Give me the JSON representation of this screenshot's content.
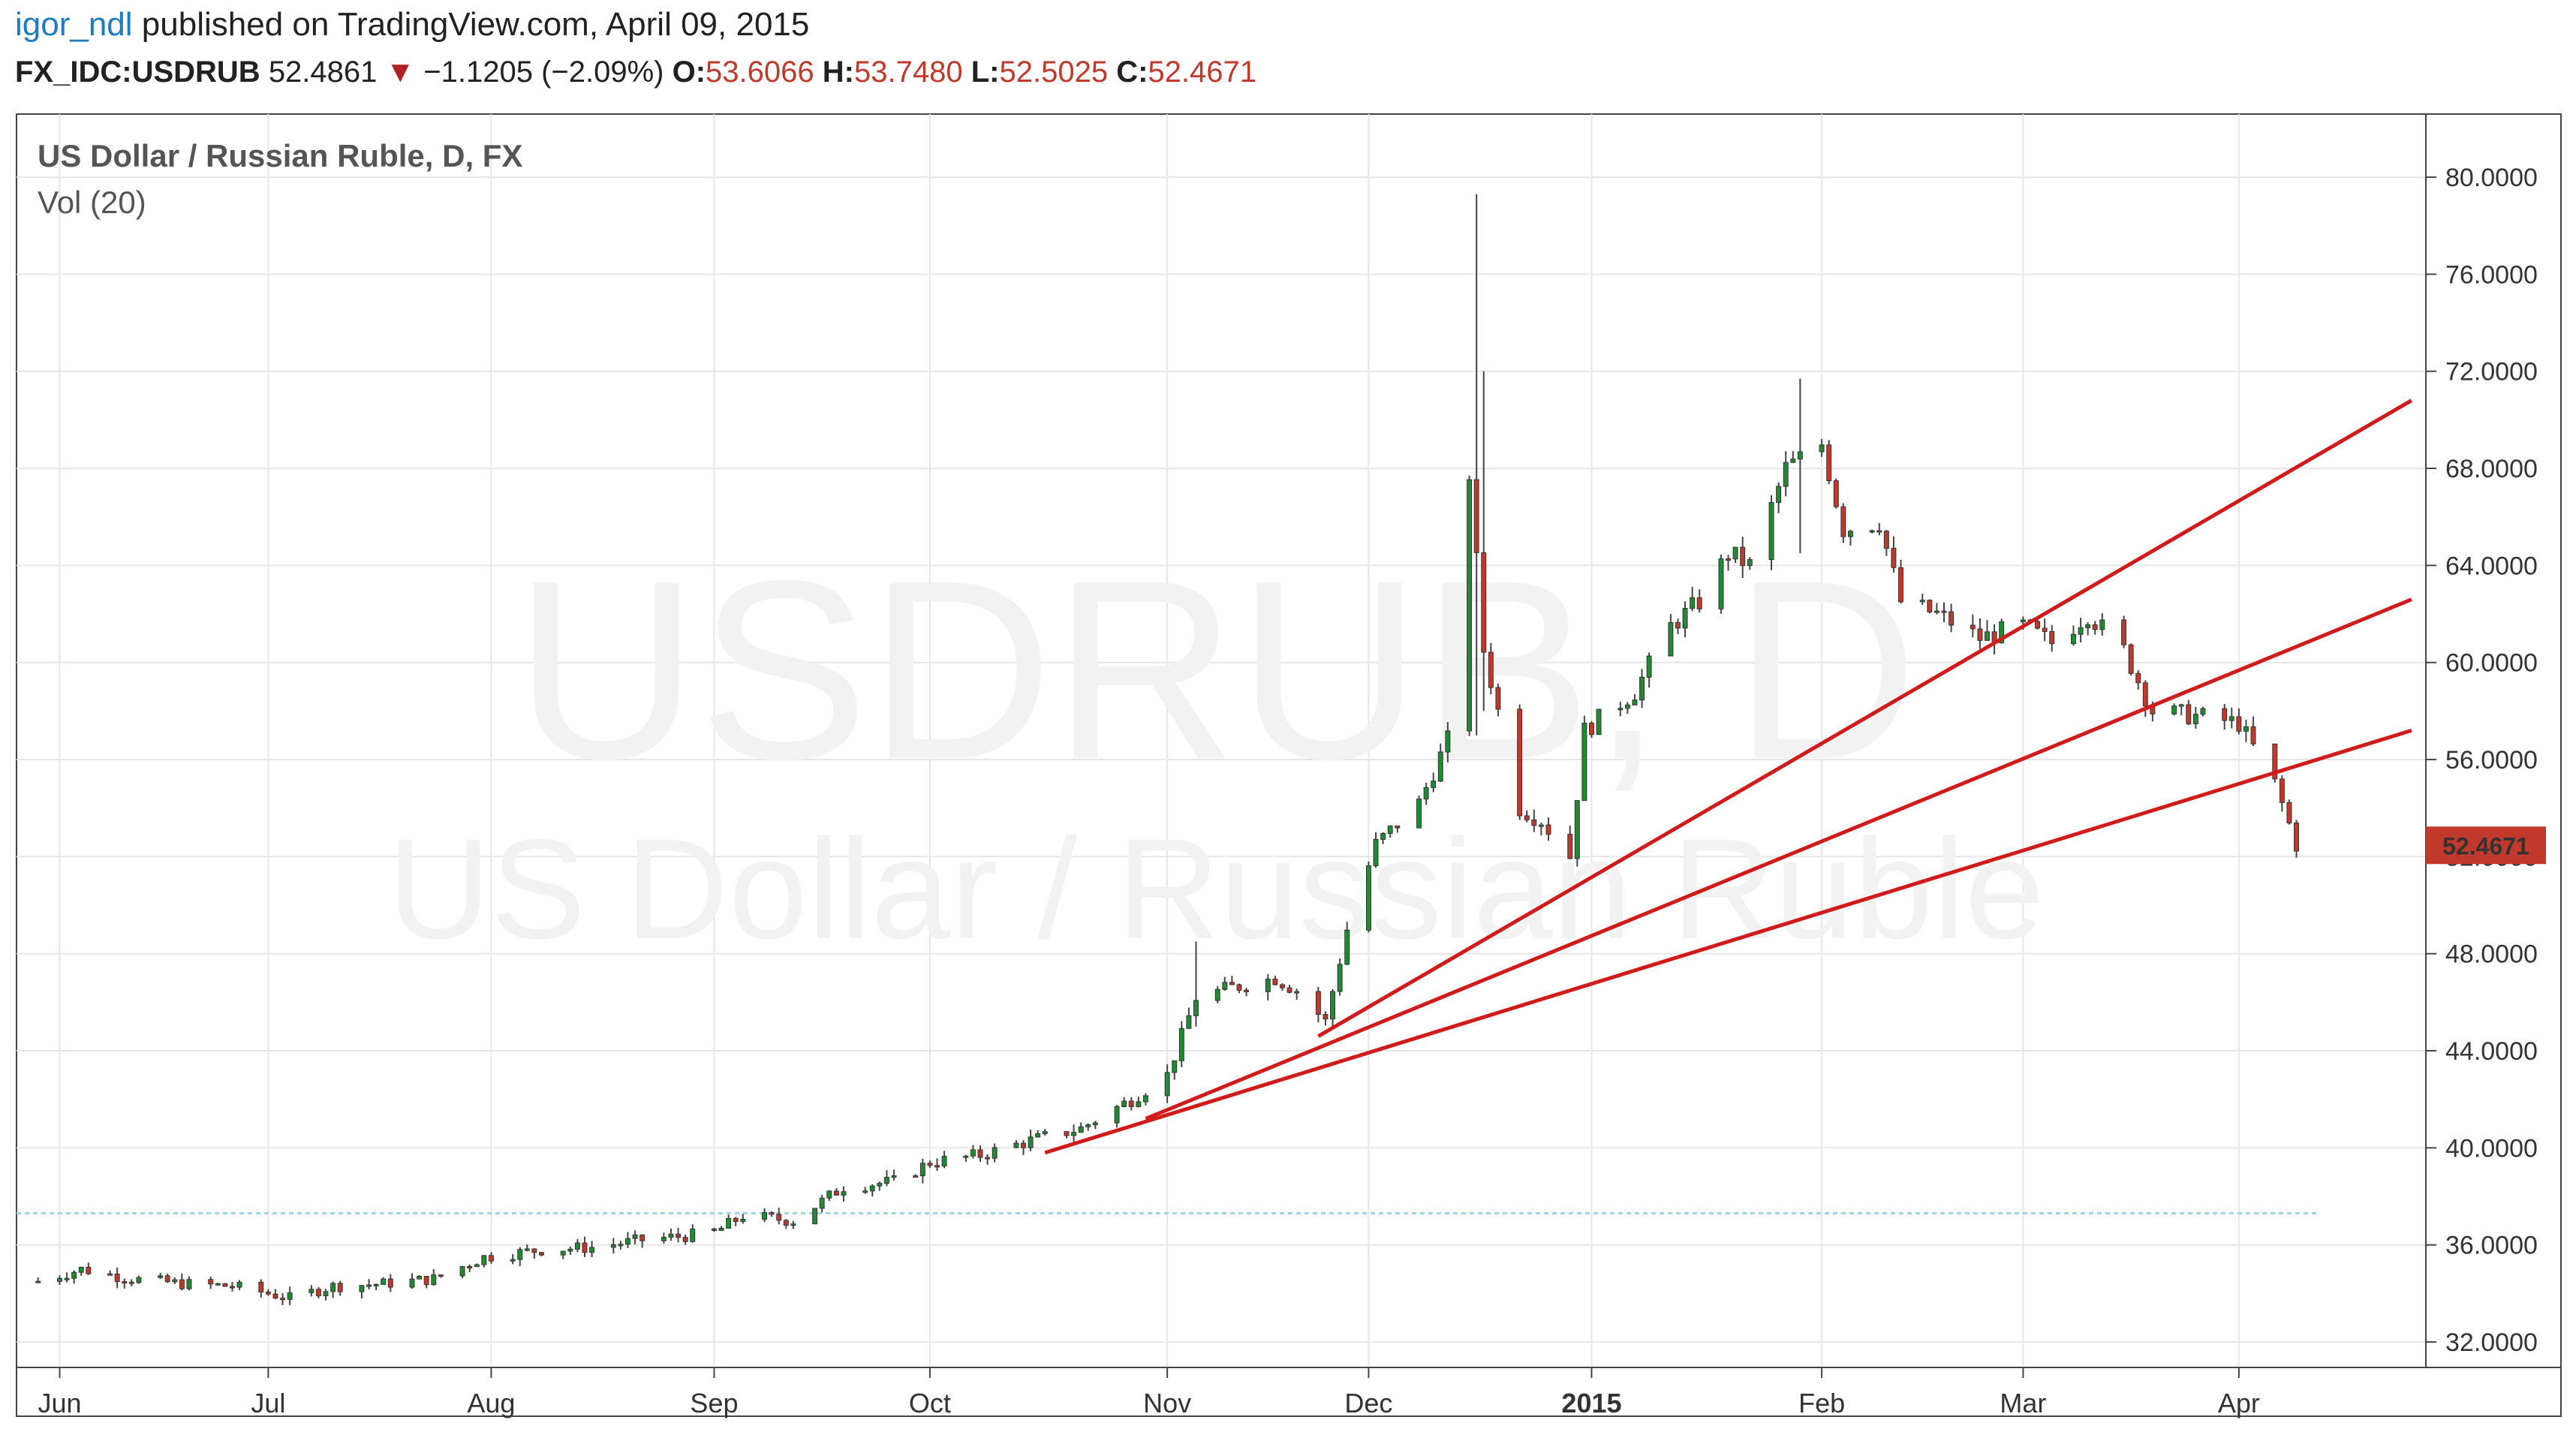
{
  "header": {
    "author": "igor_ndl",
    "published": "published on TradingView.com, April 09, 2015",
    "symbol": "FX_IDC:USDRUB",
    "last": "52.4861",
    "change": "−1.1205 (−2.09%)",
    "o_label": "O:",
    "o_value": "53.6066",
    "h_label": "H:",
    "h_value": "53.7480",
    "l_label": "L:",
    "l_value": "52.5025",
    "c_label": "C:",
    "c_value": "52.4671"
  },
  "chart_data": {
    "type": "candlestick",
    "title": "US Dollar / Russian Ruble, D, FX",
    "subtitle": "Vol (20)",
    "watermark_symbol": "USDRUB, D",
    "watermark_name": "US Dollar / Russian Ruble",
    "price_label": "52.4671",
    "ylim": [
      30.95,
      82.6
    ],
    "y_ticks": [
      "80.0000",
      "76.0000",
      "72.0000",
      "68.0000",
      "64.0000",
      "60.0000",
      "56.0000",
      "52.0000",
      "48.0000",
      "44.0000",
      "40.0000",
      "36.0000",
      "32.0000"
    ],
    "x_ticks": [
      {
        "label": "Jun",
        "date": "2014-06-02",
        "bold": false
      },
      {
        "label": "Jul",
        "date": "2014-07-01",
        "bold": false
      },
      {
        "label": "Aug",
        "date": "2014-08-01",
        "bold": false
      },
      {
        "label": "Sep",
        "date": "2014-09-01",
        "bold": false
      },
      {
        "label": "Oct",
        "date": "2014-10-01",
        "bold": false
      },
      {
        "label": "Nov",
        "date": "2014-11-03",
        "bold": false
      },
      {
        "label": "Dec",
        "date": "2014-12-01",
        "bold": false
      },
      {
        "label": "2015",
        "date": "2015-01-01",
        "bold": true
      },
      {
        "label": "Feb",
        "date": "2015-02-02",
        "bold": false
      },
      {
        "label": "Mar",
        "date": "2015-03-02",
        "bold": false
      },
      {
        "label": "Apr",
        "date": "2015-04-01",
        "bold": false
      }
    ],
    "reference_line": {
      "value": 37.3,
      "color": "#9fd3e6"
    },
    "trendlines": [
      {
        "x1": "2014-10-17",
        "y1": 39.8,
        "x2": "2015-04-25",
        "y2": 57.2
      },
      {
        "x1": "2014-10-31",
        "y1": 41.2,
        "x2": "2015-04-25",
        "y2": 62.6
      },
      {
        "x1": "2014-11-24",
        "y1": 44.6,
        "x2": "2015-04-25",
        "y2": 70.8
      }
    ],
    "colors": {
      "up": "#1f8c33",
      "down": "#c0392b",
      "wick": "#444444",
      "trend": "#d11a1a",
      "grid": "#e6e6e6"
    },
    "anchors": [
      [
        "2014-05-30",
        34.5
      ],
      [
        "2014-06-05",
        35.0
      ],
      [
        "2014-06-12",
        34.6
      ],
      [
        "2014-06-19",
        34.4
      ],
      [
        "2014-06-26",
        34.3
      ],
      [
        "2014-07-01",
        34.0
      ],
      [
        "2014-07-04",
        33.8
      ],
      [
        "2014-07-10",
        34.3
      ],
      [
        "2014-07-17",
        34.4
      ],
      [
        "2014-07-24",
        34.6
      ],
      [
        "2014-07-31",
        35.5
      ],
      [
        "2014-08-08",
        35.8
      ],
      [
        "2014-08-15",
        35.9
      ],
      [
        "2014-08-22",
        36.2
      ],
      [
        "2014-08-29",
        36.4
      ],
      [
        "2014-09-01",
        36.5
      ],
      [
        "2014-09-05",
        37.2
      ],
      [
        "2014-09-12",
        37.0
      ],
      [
        "2014-09-19",
        38.4
      ],
      [
        "2014-09-26",
        38.6
      ],
      [
        "2014-10-01",
        39.4
      ],
      [
        "2014-10-08",
        39.7
      ],
      [
        "2014-10-15",
        40.3
      ],
      [
        "2014-10-22",
        40.8
      ],
      [
        "2014-10-29",
        42.0
      ],
      [
        "2014-11-03",
        43.0
      ],
      [
        "2014-11-07",
        46.2
      ],
      [
        "2014-11-12",
        46.6
      ],
      [
        "2014-11-18",
        47.0
      ],
      [
        "2014-11-21",
        46.5
      ],
      [
        "2014-11-25",
        45.2
      ],
      [
        "2014-11-28",
        49.0
      ],
      [
        "2014-12-02",
        52.5
      ],
      [
        "2014-12-08",
        54.2
      ],
      [
        "2014-12-12",
        56.8
      ],
      [
        "2014-12-15",
        67.8
      ],
      [
        "2014-12-17",
        60.5
      ],
      [
        "2014-12-19",
        58.0
      ],
      [
        "2014-12-22",
        54.0
      ],
      [
        "2014-12-25",
        53.5
      ],
      [
        "2014-12-29",
        52.0
      ],
      [
        "2014-12-31",
        57.2
      ],
      [
        "2015-01-07",
        58.8
      ],
      [
        "2015-01-12",
        61.5
      ],
      [
        "2015-01-16",
        62.5
      ],
      [
        "2015-01-20",
        64.5
      ],
      [
        "2015-01-23",
        64.0
      ],
      [
        "2015-01-28",
        68.0
      ],
      [
        "2015-02-02",
        69.0
      ],
      [
        "2015-02-05",
        65.5
      ],
      [
        "2015-02-10",
        65.8
      ],
      [
        "2015-02-13",
        62.5
      ],
      [
        "2015-02-18",
        62.0
      ],
      [
        "2015-02-24",
        61.0
      ],
      [
        "2015-03-02",
        61.5
      ],
      [
        "2015-03-06",
        60.8
      ],
      [
        "2015-03-11",
        62.0
      ],
      [
        "2015-03-16",
        60.5
      ],
      [
        "2015-03-20",
        58.0
      ],
      [
        "2015-03-26",
        57.8
      ],
      [
        "2015-04-01",
        57.5
      ],
      [
        "2015-04-03",
        56.5
      ],
      [
        "2015-04-06",
        55.0
      ],
      [
        "2015-04-09",
        52.5
      ]
    ],
    "range_pct": 0.009,
    "spikes": [
      {
        "date": "2014-12-16",
        "high": 79.3,
        "low": 57.0
      },
      {
        "date": "2014-12-17",
        "high": 72.0,
        "low": 58.0
      },
      {
        "date": "2015-01-30",
        "high": 71.7,
        "low": 64.5
      },
      {
        "date": "2014-11-07",
        "high": 48.5,
        "low": 45.0
      }
    ]
  }
}
